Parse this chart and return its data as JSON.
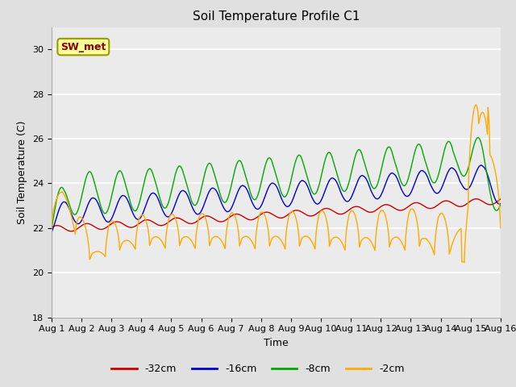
{
  "title": "Soil Temperature Profile C1",
  "xlabel": "Time",
  "ylabel": "Soil Temperature (C)",
  "ylim": [
    18,
    31
  ],
  "yticks": [
    18,
    20,
    22,
    24,
    26,
    28,
    30
  ],
  "xlim": [
    0,
    15
  ],
  "xtick_labels": [
    "Aug 1",
    "Aug 2",
    "Aug 3",
    "Aug 4",
    "Aug 5",
    "Aug 6",
    "Aug 7",
    "Aug 8",
    "Aug 9",
    "Aug 10",
    "Aug 11",
    "Aug 12",
    "Aug 13",
    "Aug 14",
    "Aug 15",
    "Aug 16"
  ],
  "colors": {
    "red": "#cc0000",
    "blue": "#0000cc",
    "green": "#00aa00",
    "orange": "#ffaa00"
  },
  "legend_labels": [
    "-32cm",
    "-16cm",
    "-8cm",
    "-2cm"
  ],
  "annotation_text": "SW_met",
  "bg_color": "#e0e0e0",
  "inner_bg_color": "#ebebeb",
  "title_fontsize": 11,
  "axis_label_fontsize": 9,
  "tick_fontsize": 8
}
